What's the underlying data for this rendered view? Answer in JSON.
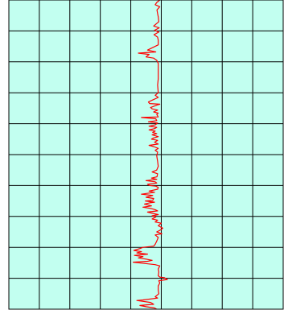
{
  "chart_data": {
    "type": "line",
    "title": "",
    "xlabel": "",
    "ylabel": "",
    "grid": true,
    "grid_columns": 9,
    "grid_rows": 10,
    "xlim": [
      0,
      9
    ],
    "ylim": [
      0,
      10
    ],
    "orientation": "vertical-trace",
    "colors": {
      "background": "#c2fff0",
      "grid": "#000000",
      "series": "#ff0000"
    },
    "series": [
      {
        "points": [
          [
            4.95,
            10.0
          ],
          [
            4.85,
            9.92
          ],
          [
            4.8,
            9.85
          ],
          [
            4.95,
            9.78
          ],
          [
            4.86,
            9.68
          ],
          [
            4.88,
            9.56
          ],
          [
            4.9,
            9.46
          ],
          [
            4.92,
            9.3
          ],
          [
            4.75,
            9.16
          ],
          [
            4.93,
            9.1
          ],
          [
            4.78,
            9.02
          ],
          [
            4.92,
            8.96
          ],
          [
            4.76,
            8.88
          ],
          [
            4.88,
            8.8
          ],
          [
            4.9,
            8.7
          ],
          [
            4.9,
            8.55
          ],
          [
            4.55,
            8.38
          ],
          [
            4.82,
            8.32
          ],
          [
            4.25,
            8.28
          ],
          [
            4.6,
            8.24
          ],
          [
            4.5,
            8.16
          ],
          [
            4.75,
            8.12
          ],
          [
            4.85,
            8.05
          ],
          [
            4.9,
            7.95
          ],
          [
            4.9,
            7.75
          ],
          [
            4.9,
            7.45
          ],
          [
            4.88,
            7.25
          ],
          [
            4.9,
            7.0
          ],
          [
            4.8,
            6.92
          ],
          [
            4.9,
            6.85
          ],
          [
            4.7,
            6.76
          ],
          [
            4.58,
            6.7
          ],
          [
            4.62,
            6.65
          ],
          [
            4.95,
            6.63
          ],
          [
            4.85,
            6.6
          ],
          [
            4.65,
            6.52
          ],
          [
            4.7,
            6.48
          ],
          [
            4.88,
            6.44
          ],
          [
            4.75,
            6.38
          ],
          [
            4.9,
            6.34
          ],
          [
            4.85,
            6.3
          ],
          [
            4.9,
            6.22
          ],
          [
            4.35,
            6.2
          ],
          [
            4.82,
            6.16
          ],
          [
            4.85,
            6.1
          ],
          [
            4.58,
            6.06
          ],
          [
            4.88,
            6.02
          ],
          [
            4.8,
            5.96
          ],
          [
            4.6,
            5.92
          ],
          [
            4.85,
            5.88
          ],
          [
            4.78,
            5.84
          ],
          [
            4.6,
            5.8
          ],
          [
            4.8,
            5.76
          ],
          [
            4.72,
            5.72
          ],
          [
            4.85,
            5.68
          ],
          [
            4.7,
            5.64
          ],
          [
            4.9,
            5.58
          ],
          [
            4.75,
            5.54
          ],
          [
            4.68,
            5.5
          ],
          [
            4.88,
            5.46
          ],
          [
            4.78,
            5.4
          ],
          [
            4.9,
            5.34
          ],
          [
            4.6,
            5.3
          ],
          [
            4.75,
            5.26
          ],
          [
            4.9,
            5.2
          ],
          [
            4.8,
            5.14
          ],
          [
            4.88,
            5.08
          ],
          [
            4.85,
            4.96
          ],
          [
            4.88,
            4.78
          ],
          [
            4.9,
            4.62
          ],
          [
            4.85,
            4.5
          ],
          [
            4.7,
            4.44
          ],
          [
            4.88,
            4.38
          ],
          [
            4.86,
            4.28
          ],
          [
            4.68,
            4.24
          ],
          [
            4.85,
            4.2
          ],
          [
            4.5,
            4.16
          ],
          [
            4.8,
            4.12
          ],
          [
            4.85,
            4.08
          ],
          [
            4.55,
            4.04
          ],
          [
            4.62,
            4.0
          ],
          [
            4.82,
            3.98
          ],
          [
            4.9,
            3.94
          ],
          [
            4.88,
            3.88
          ],
          [
            4.6,
            3.82
          ],
          [
            4.78,
            3.78
          ],
          [
            4.35,
            3.72
          ],
          [
            4.72,
            3.68
          ],
          [
            4.5,
            3.62
          ],
          [
            4.75,
            3.58
          ],
          [
            4.72,
            3.52
          ],
          [
            4.48,
            3.5
          ],
          [
            4.78,
            3.46
          ],
          [
            4.62,
            3.44
          ],
          [
            4.45,
            3.4
          ],
          [
            4.68,
            3.34
          ],
          [
            4.4,
            3.3
          ],
          [
            4.65,
            3.26
          ],
          [
            4.8,
            3.22
          ],
          [
            4.88,
            3.18
          ],
          [
            4.55,
            3.14
          ],
          [
            4.72,
            3.1
          ],
          [
            4.9,
            3.06
          ],
          [
            4.7,
            3.02
          ],
          [
            4.82,
            2.98
          ],
          [
            4.7,
            2.92
          ],
          [
            4.88,
            2.88
          ],
          [
            4.8,
            2.82
          ],
          [
            5.0,
            2.78
          ],
          [
            4.9,
            2.7
          ],
          [
            5.05,
            2.62
          ],
          [
            4.95,
            2.55
          ],
          [
            4.85,
            2.5
          ],
          [
            5.02,
            2.44
          ],
          [
            4.8,
            2.4
          ],
          [
            4.9,
            2.32
          ],
          [
            4.85,
            2.2
          ],
          [
            4.8,
            2.1
          ],
          [
            4.75,
            2.04
          ],
          [
            4.4,
            2.0
          ],
          [
            4.3,
            1.96
          ],
          [
            4.1,
            1.9
          ],
          [
            4.35,
            1.86
          ],
          [
            4.2,
            1.82
          ],
          [
            4.55,
            1.78
          ],
          [
            4.12,
            1.74
          ],
          [
            4.4,
            1.7
          ],
          [
            4.25,
            1.66
          ],
          [
            4.5,
            1.62
          ],
          [
            4.7,
            1.58
          ],
          [
            4.55,
            1.55
          ],
          [
            4.08,
            1.52
          ],
          [
            4.45,
            1.48
          ],
          [
            4.8,
            1.44
          ],
          [
            4.95,
            1.4
          ],
          [
            4.9,
            1.3
          ],
          [
            4.92,
            1.2
          ],
          [
            4.9,
            1.08
          ],
          [
            4.95,
            1.04
          ],
          [
            5.1,
            1.02
          ],
          [
            5.2,
            0.96
          ],
          [
            4.92,
            0.92
          ],
          [
            4.95,
            0.85
          ],
          [
            4.9,
            0.75
          ],
          [
            4.9,
            0.62
          ],
          [
            4.92,
            0.5
          ],
          [
            4.8,
            0.4
          ],
          [
            4.88,
            0.36
          ],
          [
            4.4,
            0.3
          ],
          [
            4.2,
            0.28
          ],
          [
            4.65,
            0.22
          ],
          [
            4.75,
            0.16
          ],
          [
            4.3,
            0.12
          ],
          [
            4.5,
            0.08
          ],
          [
            4.78,
            0.04
          ],
          [
            4.85,
            0.0
          ]
        ]
      }
    ]
  }
}
